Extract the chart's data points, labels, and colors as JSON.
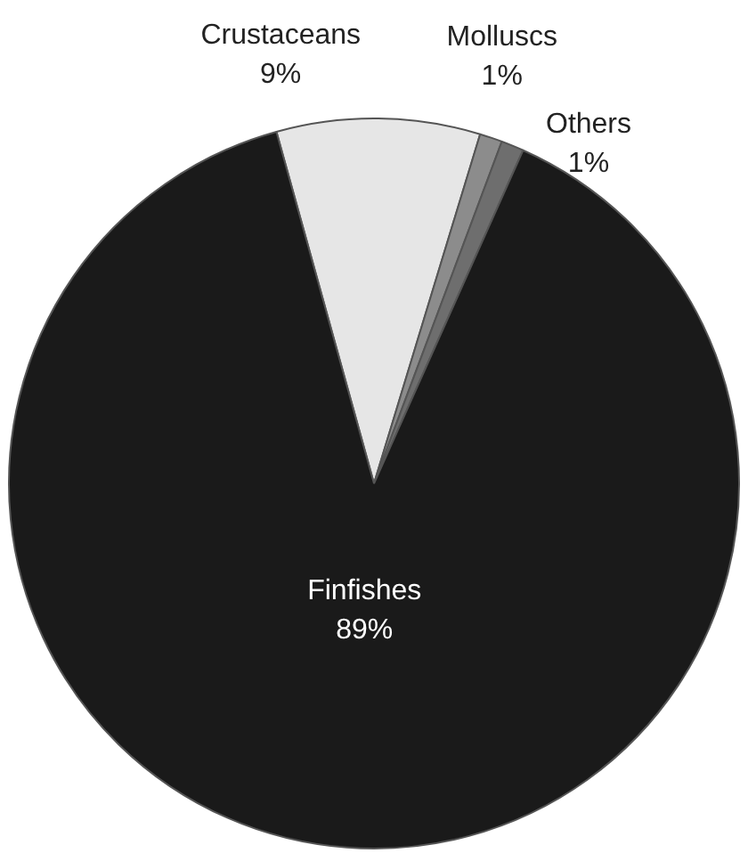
{
  "chart_data": {
    "type": "pie",
    "categories": [
      "Crustaceans",
      "Molluscs",
      "Others",
      "Finfishes"
    ],
    "values": [
      9,
      1,
      1,
      89
    ],
    "colors": [
      "#e6e6e6",
      "#8c8c8c",
      "#6e6e6e",
      "#1a1a1a"
    ],
    "value_labels": [
      "9%",
      "1%",
      "1%",
      "89%"
    ]
  }
}
